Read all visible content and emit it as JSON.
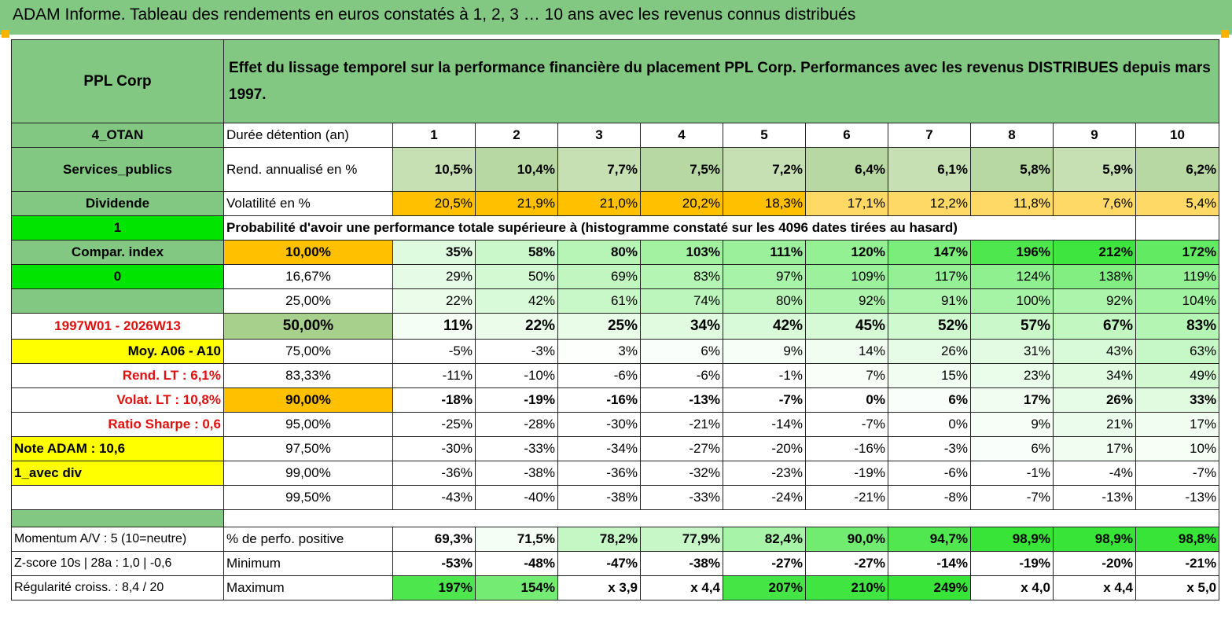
{
  "title": "ADAM Informe. Tableau des rendements en euros constatés à 1, 2, 3 … 10 ans avec les revenus connus distribués",
  "left": {
    "name": "PPL Corp",
    "code": "4_OTAN",
    "sector": "Services_publics",
    "type": "Dividende",
    "flag1": "1",
    "compar": "Compar. index",
    "flag2": "0",
    "period": "1997W01 - 2026W13",
    "moy": "Moy. A06 - A10",
    "rend_lt": "Rend. LT :   6,1%",
    "volat_lt": "Volat. LT :   10,8%",
    "sharpe": "Ratio Sharpe :    0,6",
    "note": "Note ADAM : 10,6",
    "avec_div": "1_avec div",
    "momentum": "Momentum A/V : 5 (10=neutre)",
    "zscore": "Z-score 10s | 28a : 1,0 | -0,6",
    "regularite": "Régularité croiss. : 8,4 / 20"
  },
  "header_text": "Effet du lissage temporel sur la performance financière du placement PPL Corp. Performances avec les revenus DISTRIBUES depuis mars 1997.",
  "labels": {
    "duree": "Durée détention (an)",
    "rend": "Rend. annualisé en %",
    "vol": "Volatilité en %",
    "proba": "Probabilité d'avoir une performance totale supérieure à (histogramme constaté sur les 4096 dates tirées au hasard)",
    "positive": "% de perfo. positive",
    "minimum": "Minimum",
    "maximum": "Maximum"
  },
  "years": [
    "1",
    "2",
    "3",
    "4",
    "5",
    "6",
    "7",
    "8",
    "9",
    "10"
  ],
  "rend": [
    "10,5%",
    "10,4%",
    "7,7%",
    "7,5%",
    "7,2%",
    "6,4%",
    "6,1%",
    "5,8%",
    "5,9%",
    "6,2%"
  ],
  "vol": [
    "20,5%",
    "21,9%",
    "21,0%",
    "20,2%",
    "18,3%",
    "17,1%",
    "12,2%",
    "11,8%",
    "7,6%",
    "5,4%"
  ],
  "quantiles": [
    {
      "label": "10,00%",
      "values": [
        "35%",
        "58%",
        "80%",
        "103%",
        "111%",
        "120%",
        "147%",
        "196%",
        "212%",
        "172%"
      ]
    },
    {
      "label": "16,67%",
      "values": [
        "29%",
        "50%",
        "69%",
        "83%",
        "97%",
        "109%",
        "117%",
        "124%",
        "138%",
        "119%"
      ]
    },
    {
      "label": "25,00%",
      "values": [
        "22%",
        "42%",
        "61%",
        "74%",
        "80%",
        "92%",
        "91%",
        "100%",
        "92%",
        "104%"
      ]
    },
    {
      "label": "50,00%",
      "values": [
        "11%",
        "22%",
        "25%",
        "34%",
        "42%",
        "45%",
        "52%",
        "57%",
        "67%",
        "83%"
      ]
    },
    {
      "label": "75,00%",
      "values": [
        "-5%",
        "-3%",
        "3%",
        "6%",
        "9%",
        "14%",
        "26%",
        "31%",
        "43%",
        "63%"
      ]
    },
    {
      "label": "83,33%",
      "values": [
        "-11%",
        "-10%",
        "-6%",
        "-6%",
        "-1%",
        "7%",
        "15%",
        "23%",
        "34%",
        "49%"
      ]
    },
    {
      "label": "90,00%",
      "values": [
        "-18%",
        "-19%",
        "-16%",
        "-13%",
        "-7%",
        "0%",
        "6%",
        "17%",
        "26%",
        "33%"
      ]
    },
    {
      "label": "95,00%",
      "values": [
        "-25%",
        "-28%",
        "-30%",
        "-21%",
        "-14%",
        "-7%",
        "0%",
        "9%",
        "21%",
        "17%"
      ]
    },
    {
      "label": "97,50%",
      "values": [
        "-30%",
        "-33%",
        "-34%",
        "-27%",
        "-20%",
        "-16%",
        "-3%",
        "6%",
        "17%",
        "10%"
      ]
    },
    {
      "label": "99,00%",
      "values": [
        "-36%",
        "-38%",
        "-36%",
        "-32%",
        "-23%",
        "-19%",
        "-6%",
        "-1%",
        "-4%",
        "-7%"
      ]
    },
    {
      "label": "99,50%",
      "values": [
        "-43%",
        "-40%",
        "-38%",
        "-33%",
        "-24%",
        "-21%",
        "-8%",
        "-7%",
        "-13%",
        "-13%"
      ]
    }
  ],
  "positive": [
    "69,3%",
    "71,5%",
    "78,2%",
    "77,9%",
    "82,4%",
    "90,0%",
    "94,7%",
    "98,9%",
    "98,9%",
    "98,8%"
  ],
  "minimum": [
    "-53%",
    "-48%",
    "-47%",
    "-38%",
    "-27%",
    "-27%",
    "-14%",
    "-19%",
    "-20%",
    "-21%"
  ],
  "maximum": [
    "197%",
    "154%",
    "x 3,9",
    "x 4,4",
    "207%",
    "210%",
    "249%",
    "x 4,0",
    "x 4,4",
    "x 5,0"
  ],
  "colors": {
    "header_green": "#82c882",
    "lime": "#00e400",
    "yellow": "#ffff00",
    "orange": "#ffc000",
    "sage": "#a8d08d",
    "red_text": "#e01010"
  }
}
